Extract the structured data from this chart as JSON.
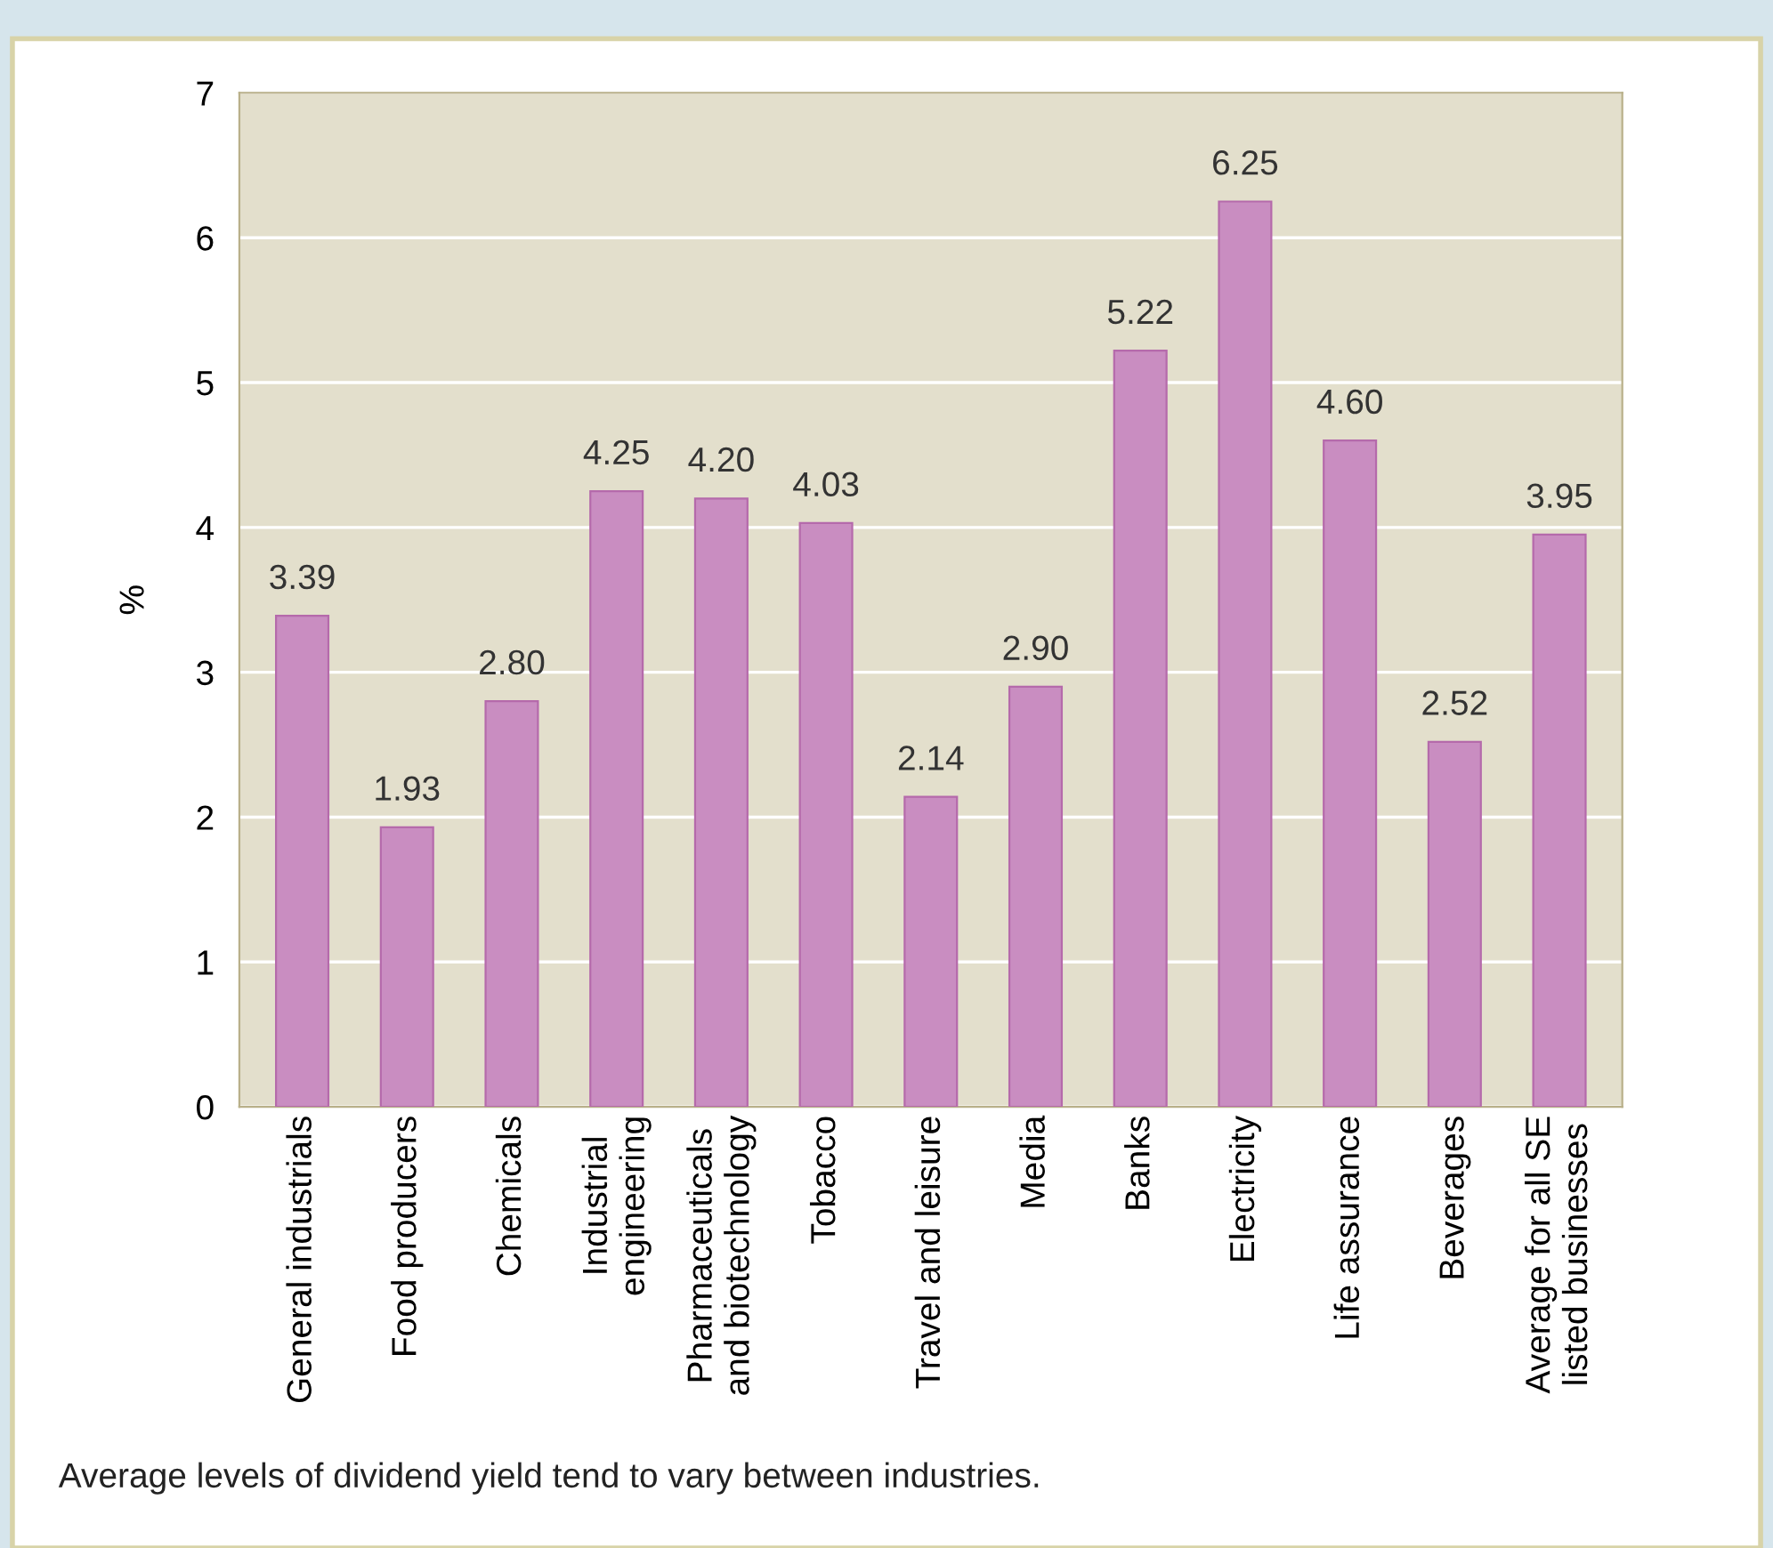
{
  "chart_data": {
    "type": "bar",
    "ylabel": "%",
    "categories": [
      "General industrials",
      "Food producers",
      "Chemicals",
      "Industrial\nengineering",
      "Pharmaceuticals\nand biotechnology",
      "Tobacco",
      "Travel and leisure",
      "Media",
      "Banks",
      "Electricity",
      "Life assurance",
      "Beverages",
      "Average for all SE\nlisted businesses"
    ],
    "values": [
      3.39,
      1.93,
      2.8,
      4.25,
      4.2,
      4.03,
      2.14,
      2.9,
      5.22,
      6.25,
      4.6,
      2.52,
      3.95
    ],
    "value_labels": [
      "3.39",
      "1.93",
      "2.80",
      "4.25",
      "4.20",
      "4.03",
      "2.14",
      "2.90",
      "5.22",
      "6.25",
      "4.60",
      "2.52",
      "3.95"
    ],
    "color": "#c98dc1",
    "ylim": [
      0,
      7
    ],
    "yticks": [
      0,
      1,
      2,
      3,
      4,
      5,
      6,
      7
    ],
    "grid": "y",
    "legend": false,
    "annotations": [
      "Average levels of dividend yield tend to vary between industries."
    ]
  }
}
